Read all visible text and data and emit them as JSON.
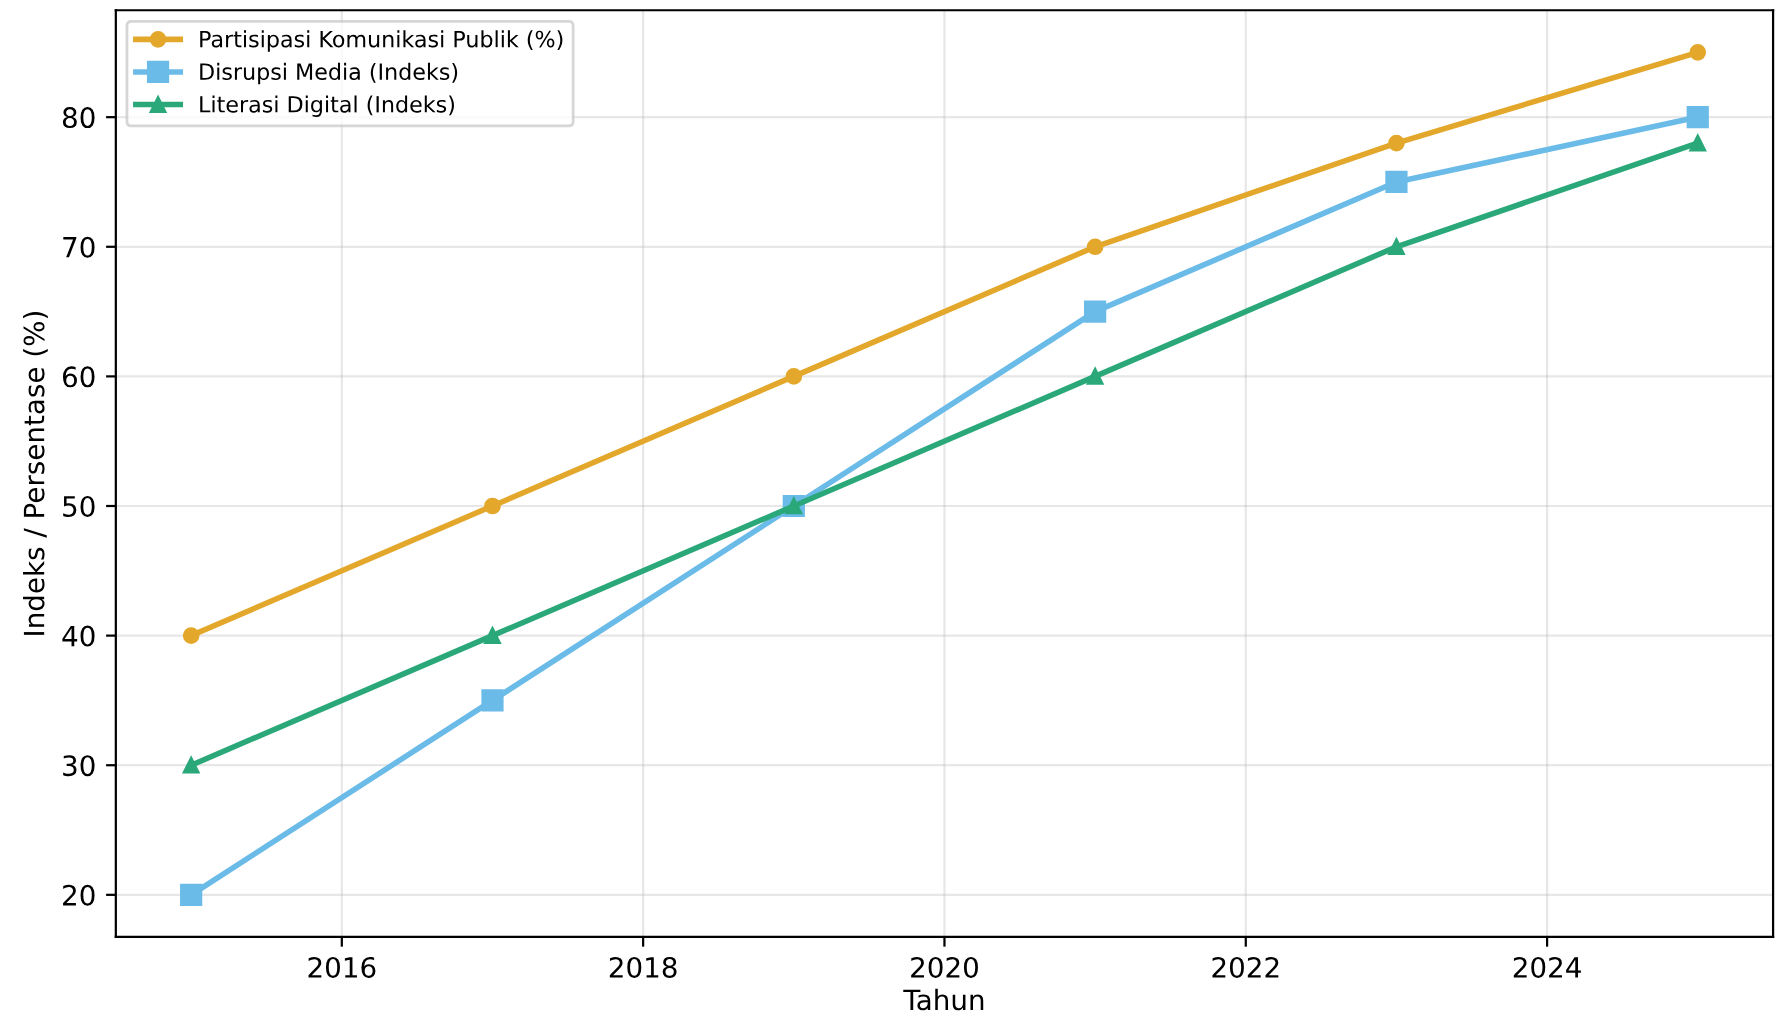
{
  "chart_data": {
    "type": "line",
    "xlabel": "Tahun",
    "ylabel": "Indeks / Persentase (%)",
    "x": [
      2015,
      2017,
      2019,
      2021,
      2023,
      2025
    ],
    "series": [
      {
        "name": "Partisipasi Komunikasi Publik (%)",
        "color": "#e3a82b",
        "marker": "circle",
        "values": [
          40,
          50,
          60,
          70,
          78,
          85
        ]
      },
      {
        "name": "Disrupsi Media (Indeks)",
        "color": "#6bbbe8",
        "marker": "square",
        "values": [
          20,
          35,
          50,
          65,
          75,
          80
        ]
      },
      {
        "name": "Literasi Digital (Indeks)",
        "color": "#2aa87a",
        "marker": "triangle",
        "values": [
          30,
          40,
          50,
          60,
          70,
          78
        ]
      }
    ],
    "xlim": [
      2014.5,
      2025.5
    ],
    "xticks": [
      2016,
      2018,
      2020,
      2022,
      2024
    ],
    "ylim": [
      16.75,
      88.25
    ],
    "yticks": [
      20,
      30,
      40,
      50,
      60,
      70,
      80
    ],
    "grid": true,
    "legend": "top left",
    "line_style": "solid"
  }
}
